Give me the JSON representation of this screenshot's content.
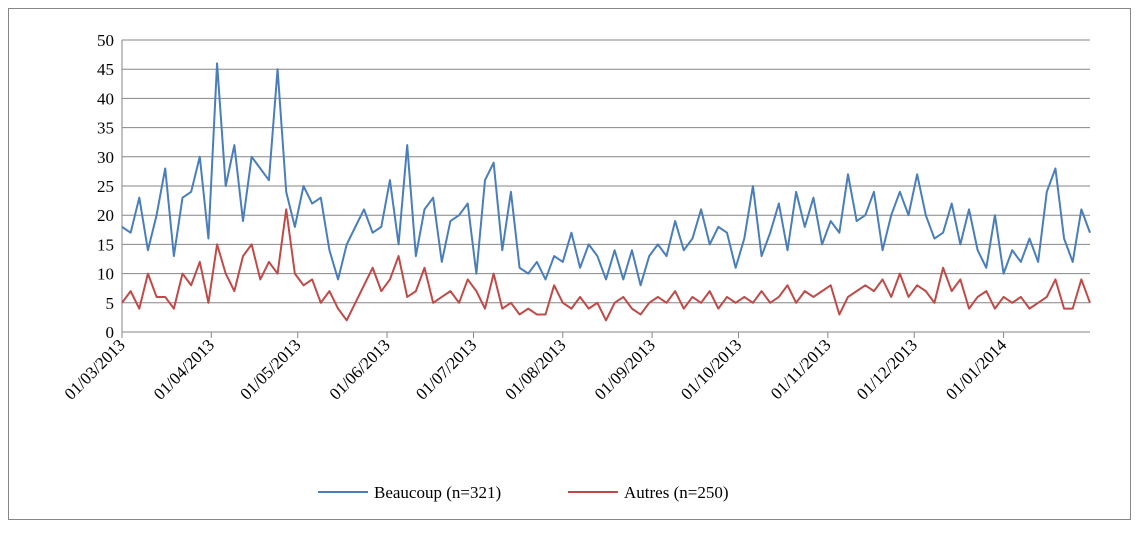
{
  "chart_data": {
    "type": "line",
    "x": [
      "01/03/2013",
      "04/03/2013",
      "07/03/2013",
      "10/03/2013",
      "13/03/2013",
      "16/03/2013",
      "19/03/2013",
      "22/03/2013",
      "25/03/2013",
      "28/03/2013",
      "31/03/2013",
      "03/04/2013",
      "06/04/2013",
      "09/04/2013",
      "12/04/2013",
      "15/04/2013",
      "18/04/2013",
      "21/04/2013",
      "24/04/2013",
      "27/04/2013",
      "30/04/2013",
      "03/05/2013",
      "06/05/2013",
      "09/05/2013",
      "12/05/2013",
      "15/05/2013",
      "18/05/2013",
      "21/05/2013",
      "24/05/2013",
      "27/05/2013",
      "30/05/2013",
      "02/06/2013",
      "05/06/2013",
      "08/06/2013",
      "11/06/2013",
      "14/06/2013",
      "17/06/2013",
      "20/06/2013",
      "23/06/2013",
      "26/06/2013",
      "29/06/2013",
      "02/07/2013",
      "05/07/2013",
      "08/07/2013",
      "11/07/2013",
      "14/07/2013",
      "17/07/2013",
      "20/07/2013",
      "23/07/2013",
      "26/07/2013",
      "29/07/2013",
      "01/08/2013",
      "04/08/2013",
      "07/08/2013",
      "10/08/2013",
      "13/08/2013",
      "16/08/2013",
      "19/08/2013",
      "22/08/2013",
      "25/08/2013",
      "28/08/2013",
      "31/08/2013",
      "03/09/2013",
      "06/09/2013",
      "09/09/2013",
      "12/09/2013",
      "15/09/2013",
      "18/09/2013",
      "21/09/2013",
      "24/09/2013",
      "27/09/2013",
      "30/09/2013",
      "03/10/2013",
      "06/10/2013",
      "09/10/2013",
      "12/10/2013",
      "15/10/2013",
      "18/10/2013",
      "21/10/2013",
      "24/10/2013",
      "27/10/2013",
      "30/10/2013",
      "02/11/2013",
      "05/11/2013",
      "08/11/2013",
      "11/11/2013",
      "14/11/2013",
      "17/11/2013",
      "20/11/2013",
      "23/11/2013",
      "26/11/2013",
      "29/11/2013",
      "02/12/2013",
      "05/12/2013",
      "08/12/2013",
      "11/12/2013",
      "14/12/2013",
      "17/12/2013",
      "20/12/2013",
      "23/12/2013",
      "26/12/2013",
      "29/12/2013",
      "01/01/2014",
      "04/01/2014",
      "07/01/2014",
      "10/01/2014",
      "13/01/2014",
      "16/01/2014",
      "19/01/2014",
      "22/01/2014",
      "25/01/2014",
      "28/01/2014",
      "31/01/2014"
    ],
    "series": [
      {
        "name": "Beaucoup (n=321)",
        "color": "#4a7ebb",
        "values": [
          18,
          17,
          23,
          14,
          20,
          28,
          13,
          23,
          24,
          30,
          16,
          46,
          25,
          32,
          19,
          30,
          28,
          26,
          45,
          24,
          18,
          25,
          22,
          23,
          14,
          9,
          15,
          18,
          21,
          17,
          18,
          26,
          15,
          32,
          13,
          21,
          23,
          12,
          19,
          20,
          22,
          10,
          26,
          29,
          14,
          24,
          11,
          10,
          12,
          9,
          13,
          12,
          17,
          11,
          15,
          13,
          9,
          14,
          9,
          14,
          8,
          13,
          15,
          13,
          19,
          14,
          16,
          21,
          15,
          18,
          17,
          11,
          16,
          25,
          13,
          17,
          22,
          14,
          24,
          18,
          23,
          15,
          19,
          17,
          27,
          19,
          20,
          24,
          14,
          20,
          24,
          20,
          27,
          20,
          16,
          17,
          22,
          15,
          21,
          14,
          11,
          20,
          10,
          14,
          12,
          16,
          12,
          24,
          28,
          16,
          12,
          21,
          17
        ]
      },
      {
        "name": "Autres (n=250)",
        "color": "#be4b48",
        "values": [
          5,
          7,
          4,
          10,
          6,
          6,
          4,
          10,
          8,
          12,
          5,
          15,
          10,
          7,
          13,
          15,
          9,
          12,
          10,
          21,
          10,
          8,
          9,
          5,
          7,
          4,
          2,
          5,
          8,
          11,
          7,
          9,
          13,
          6,
          7,
          11,
          5,
          6,
          7,
          5,
          9,
          7,
          4,
          10,
          4,
          5,
          3,
          4,
          3,
          3,
          8,
          5,
          4,
          6,
          4,
          5,
          2,
          5,
          6,
          4,
          3,
          5,
          6,
          5,
          7,
          4,
          6,
          5,
          7,
          4,
          6,
          5,
          6,
          5,
          7,
          5,
          6,
          8,
          5,
          7,
          6,
          7,
          8,
          3,
          6,
          7,
          8,
          7,
          9,
          6,
          10,
          6,
          8,
          7,
          5,
          11,
          7,
          9,
          4,
          6,
          7,
          4,
          6,
          5,
          6,
          4,
          5,
          6,
          9,
          4,
          4,
          9,
          5
        ]
      }
    ],
    "xlim": [
      "01/03/2013",
      "31/01/2014"
    ],
    "xticks": [
      "01/03/2013",
      "01/04/2013",
      "01/05/2013",
      "01/06/2013",
      "01/07/2013",
      "01/08/2013",
      "01/09/2013",
      "01/10/2013",
      "01/11/2013",
      "01/12/2013",
      "01/01/2014"
    ],
    "ylim": [
      0,
      50
    ],
    "yticks": [
      0,
      5,
      10,
      15,
      20,
      25,
      30,
      35,
      40,
      45,
      50
    ],
    "grid": true,
    "legend": "bottom"
  }
}
